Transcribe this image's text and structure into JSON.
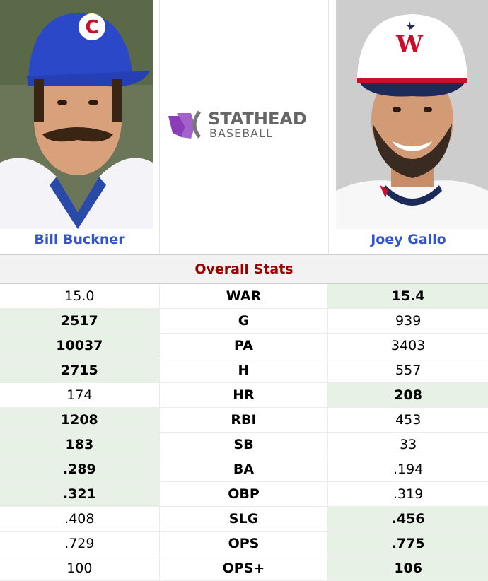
{
  "players": {
    "left": {
      "name": "Bill Buckner"
    },
    "right": {
      "name": "Joey Gallo"
    }
  },
  "logo": {
    "line1": "STATHEAD",
    "line2": "BASEBALL"
  },
  "section": {
    "title": "Overall Stats"
  },
  "colors": {
    "accent": "#990000",
    "highlight": "#e8f1e6",
    "link": "#3355cc",
    "logo_purple": "#8a3db6",
    "logo_gray": "#666666"
  },
  "stats": [
    {
      "label": "WAR",
      "left": "15.0",
      "right": "15.4",
      "best": "right"
    },
    {
      "label": "G",
      "left": "2517",
      "right": "939",
      "best": "left"
    },
    {
      "label": "PA",
      "left": "10037",
      "right": "3403",
      "best": "left"
    },
    {
      "label": "H",
      "left": "2715",
      "right": "557",
      "best": "left"
    },
    {
      "label": "HR",
      "left": "174",
      "right": "208",
      "best": "right"
    },
    {
      "label": "RBI",
      "left": "1208",
      "right": "453",
      "best": "left"
    },
    {
      "label": "SB",
      "left": "183",
      "right": "33",
      "best": "left"
    },
    {
      "label": "BA",
      "left": ".289",
      "right": ".194",
      "best": "left"
    },
    {
      "label": "OBP",
      "left": ".321",
      "right": ".319",
      "best": "left"
    },
    {
      "label": "SLG",
      "left": ".408",
      "right": ".456",
      "best": "right"
    },
    {
      "label": "OPS",
      "left": ".729",
      "right": ".775",
      "best": "right"
    },
    {
      "label": "OPS+",
      "left": "100",
      "right": "106",
      "best": "right"
    }
  ]
}
